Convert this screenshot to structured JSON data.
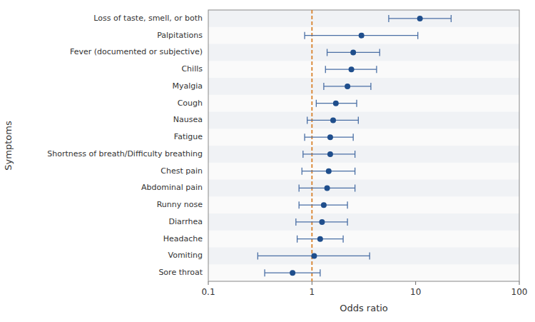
{
  "chart_data": {
    "type": "forest",
    "xlabel": "Odds ratio",
    "ylabel": "Symptoms",
    "categories": [
      "Loss of taste, smell, or both",
      "Palpitations",
      "Fever (documented or subjective)",
      "Chills",
      "Myalgia",
      "Cough",
      "Nausea",
      "Fatigue",
      "Shortness of breath/Difficulty breathing",
      "Chest pain",
      "Abdominal pain",
      "Runny nose",
      "Diarrhea",
      "Headache",
      "Vomiting",
      "Sore throat"
    ],
    "values": [
      11.0,
      3.0,
      2.5,
      2.4,
      2.2,
      1.7,
      1.6,
      1.5,
      1.5,
      1.45,
      1.4,
      1.3,
      1.25,
      1.2,
      1.05,
      0.65
    ],
    "ci_low": [
      5.5,
      0.85,
      1.4,
      1.35,
      1.3,
      1.1,
      0.9,
      0.85,
      0.82,
      0.8,
      0.75,
      0.75,
      0.7,
      0.72,
      0.3,
      0.35
    ],
    "ci_high": [
      22.0,
      10.5,
      4.5,
      4.2,
      3.7,
      2.7,
      2.8,
      2.5,
      2.6,
      2.6,
      2.6,
      2.2,
      2.2,
      2.0,
      3.6,
      1.2
    ],
    "ref_line": 1.0,
    "log": "x",
    "xlim": [
      0.1,
      100
    ],
    "xticks": [
      0.1,
      1,
      10,
      100
    ]
  }
}
